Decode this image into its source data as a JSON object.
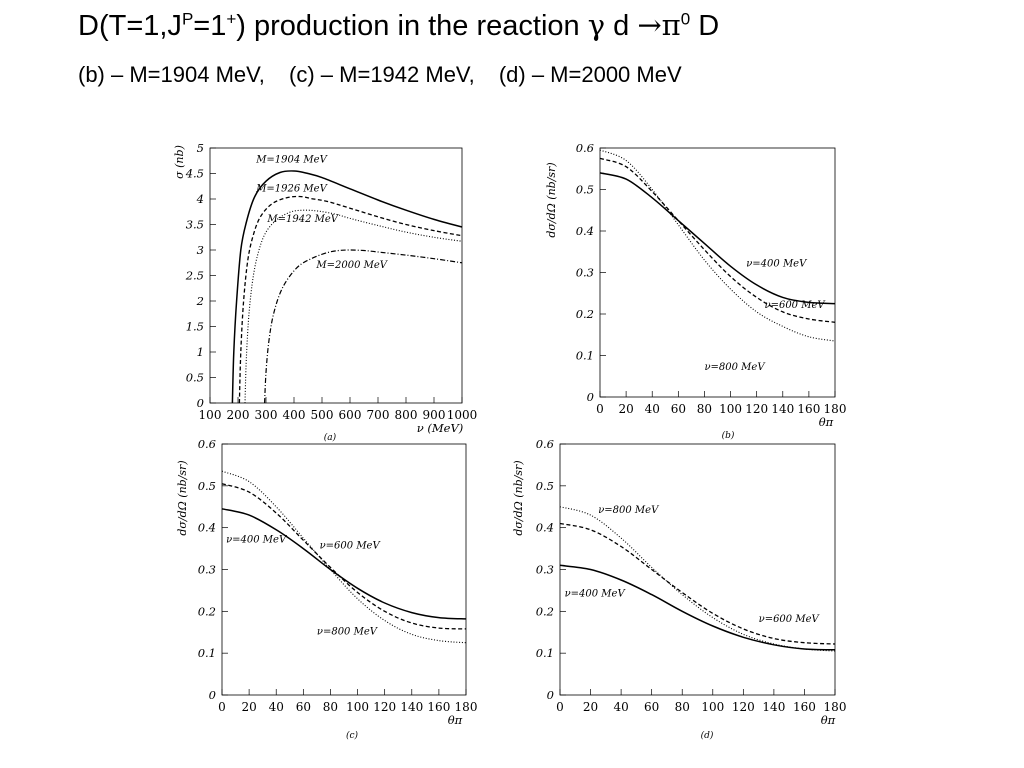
{
  "header": {
    "title_prefix": "D(T=1,J",
    "title_sup1": "P",
    "title_mid": "=1",
    "title_sup2": "+",
    "title_main": ") production in the reaction ",
    "title_gamma": "γ",
    "title_d": " d ",
    "title_arrow_pi": "→π",
    "title_sup3": "0",
    "title_D": " D",
    "subtitle_b": "(b) – M=1904 MeV,",
    "subtitle_c": "(c) – M=1942 MeV,",
    "subtitle_d": "(d) – M=2000 MeV"
  },
  "chart_data": [
    {
      "panel": "a",
      "type": "line",
      "caption": "(a)",
      "xlabel": "ν (MeV)",
      "ylabel": "σ (nb)",
      "xlim": [
        100,
        1000
      ],
      "ylim": [
        0,
        5
      ],
      "xticks": [
        100,
        200,
        300,
        400,
        500,
        600,
        700,
        800,
        900,
        1000
      ],
      "yticks": [
        0,
        0.5,
        1,
        1.5,
        2,
        2.5,
        3,
        3.5,
        4,
        4.5,
        5
      ],
      "ytick_labels": [
        "0",
        "0.5",
        "1",
        "1.5",
        "2",
        "2.5",
        "3",
        "3.5",
        "4",
        "4.5",
        "5"
      ],
      "series": [
        {
          "name": "M=1904 MeV",
          "style": "solid",
          "label_at": [
            265,
            4.72
          ],
          "x": [
            180,
            185,
            195,
            210,
            230,
            260,
            300,
            350,
            400,
            450,
            500,
            600,
            700,
            800,
            900,
            1000
          ],
          "y": [
            0,
            1.0,
            2.0,
            3.0,
            3.55,
            4.05,
            4.35,
            4.52,
            4.55,
            4.5,
            4.42,
            4.2,
            3.98,
            3.78,
            3.6,
            3.45
          ]
        },
        {
          "name": "M=1926 MeV",
          "style": "dash",
          "label_at": [
            265,
            4.15
          ],
          "x": [
            205,
            210,
            220,
            235,
            255,
            280,
            320,
            370,
            420,
            470,
            520,
            600,
            700,
            800,
            900,
            1000
          ],
          "y": [
            0,
            1.0,
            2.0,
            2.8,
            3.3,
            3.65,
            3.9,
            4.02,
            4.05,
            4.0,
            3.95,
            3.82,
            3.65,
            3.5,
            3.38,
            3.28
          ]
        },
        {
          "name": "M=1942 MeV",
          "style": "dot",
          "label_at": [
            305,
            3.55
          ],
          "x": [
            225,
            230,
            240,
            255,
            275,
            300,
            340,
            390,
            440,
            490,
            550,
            600,
            700,
            800,
            900,
            1000
          ],
          "y": [
            0,
            0.9,
            1.8,
            2.5,
            3.0,
            3.35,
            3.6,
            3.75,
            3.78,
            3.76,
            3.7,
            3.62,
            3.48,
            3.35,
            3.25,
            3.17
          ]
        },
        {
          "name": "M=2000 MeV",
          "style": "dashdot",
          "label_at": [
            480,
            2.65
          ],
          "x": [
            295,
            300,
            310,
            325,
            350,
            380,
            420,
            470,
            520,
            560,
            600,
            650,
            700,
            800,
            900,
            1000
          ],
          "y": [
            0,
            0.6,
            1.2,
            1.7,
            2.15,
            2.45,
            2.7,
            2.85,
            2.95,
            2.99,
            3.0,
            2.99,
            2.96,
            2.9,
            2.83,
            2.75
          ]
        }
      ]
    },
    {
      "panel": "b",
      "type": "line",
      "caption": "(b)",
      "xlabel": "θπ",
      "ylabel": "dσ/dΩ (nb/sr)",
      "xlim": [
        0,
        180
      ],
      "ylim": [
        0,
        0.6
      ],
      "xticks": [
        0,
        20,
        40,
        60,
        80,
        100,
        120,
        140,
        160,
        180
      ],
      "yticks": [
        0,
        0.1,
        0.2,
        0.3,
        0.4,
        0.5,
        0.6
      ],
      "ytick_labels": [
        "0",
        "0.1",
        "0.2",
        "0.3",
        "0.4",
        "0.5",
        "0.6"
      ],
      "series": [
        {
          "name": "ν=400 MeV",
          "style": "solid",
          "label_at": [
            112,
            0.315
          ],
          "x": [
            0,
            20,
            40,
            60,
            80,
            100,
            120,
            140,
            160,
            180
          ],
          "y": [
            0.54,
            0.525,
            0.48,
            0.425,
            0.37,
            0.315,
            0.27,
            0.24,
            0.228,
            0.225
          ]
        },
        {
          "name": "ν=600 MeV",
          "style": "dash",
          "label_at": [
            126,
            0.215
          ],
          "x": [
            0,
            20,
            40,
            60,
            80,
            100,
            120,
            140,
            160,
            180
          ],
          "y": [
            0.575,
            0.555,
            0.495,
            0.425,
            0.355,
            0.29,
            0.24,
            0.205,
            0.188,
            0.18
          ]
        },
        {
          "name": "ν=800 MeV",
          "style": "dot",
          "label_at": [
            80,
            0.065
          ],
          "x": [
            0,
            20,
            40,
            60,
            80,
            100,
            120,
            140,
            160,
            180
          ],
          "y": [
            0.595,
            0.57,
            0.5,
            0.415,
            0.33,
            0.26,
            0.205,
            0.17,
            0.145,
            0.135
          ]
        }
      ]
    },
    {
      "panel": "c",
      "type": "line",
      "caption": "(c)",
      "xlabel": "θπ",
      "ylabel": "dσ/dΩ (nb/sr)",
      "xlim": [
        0,
        180
      ],
      "ylim": [
        0,
        0.6
      ],
      "xticks": [
        0,
        20,
        40,
        60,
        80,
        100,
        120,
        140,
        160,
        180
      ],
      "yticks": [
        0,
        0.1,
        0.2,
        0.3,
        0.4,
        0.5,
        0.6
      ],
      "ytick_labels": [
        "0",
        "0.1",
        "0.2",
        "0.3",
        "0.4",
        "0.5",
        "0.6"
      ],
      "series": [
        {
          "name": "ν=400 MeV",
          "style": "solid",
          "label_at": [
            3,
            0.365
          ],
          "x": [
            0,
            20,
            40,
            60,
            80,
            100,
            120,
            140,
            160,
            180
          ],
          "y": [
            0.445,
            0.43,
            0.395,
            0.35,
            0.3,
            0.255,
            0.22,
            0.197,
            0.185,
            0.182
          ]
        },
        {
          "name": "ν=600 MeV",
          "style": "dash",
          "label_at": [
            72,
            0.35
          ],
          "x": [
            0,
            20,
            40,
            60,
            80,
            100,
            120,
            140,
            160,
            180
          ],
          "y": [
            0.505,
            0.485,
            0.435,
            0.37,
            0.305,
            0.245,
            0.2,
            0.172,
            0.16,
            0.158
          ]
        },
        {
          "name": "ν=800 MeV",
          "style": "dot",
          "label_at": [
            70,
            0.145
          ],
          "x": [
            0,
            20,
            40,
            60,
            80,
            100,
            120,
            140,
            160,
            180
          ],
          "y": [
            0.535,
            0.51,
            0.45,
            0.375,
            0.3,
            0.23,
            0.178,
            0.145,
            0.13,
            0.125
          ]
        }
      ]
    },
    {
      "panel": "d",
      "type": "line",
      "caption": "(d)",
      "xlabel": "θπ",
      "ylabel": "dσ/dΩ (nb/sr)",
      "xlim": [
        0,
        180
      ],
      "ylim": [
        0,
        0.6
      ],
      "xticks": [
        0,
        20,
        40,
        60,
        80,
        100,
        120,
        140,
        160,
        180
      ],
      "yticks": [
        0,
        0.1,
        0.2,
        0.3,
        0.4,
        0.5,
        0.6
      ],
      "ytick_labels": [
        "0",
        "0.1",
        "0.2",
        "0.3",
        "0.4",
        "0.5",
        "0.6"
      ],
      "series": [
        {
          "name": "ν=400 MeV",
          "style": "solid",
          "label_at": [
            3,
            0.235
          ],
          "x": [
            0,
            20,
            40,
            60,
            80,
            100,
            120,
            140,
            160,
            180
          ],
          "y": [
            0.31,
            0.3,
            0.275,
            0.24,
            0.2,
            0.165,
            0.138,
            0.12,
            0.11,
            0.108
          ]
        },
        {
          "name": "ν=600 MeV",
          "style": "dash",
          "label_at": [
            130,
            0.175
          ],
          "x": [
            0,
            20,
            40,
            60,
            80,
            100,
            120,
            140,
            160,
            180
          ],
          "y": [
            0.41,
            0.395,
            0.355,
            0.3,
            0.245,
            0.195,
            0.158,
            0.135,
            0.125,
            0.122
          ]
        },
        {
          "name": "ν=800 MeV",
          "style": "dot",
          "label_at": [
            25,
            0.435
          ],
          "x": [
            0,
            20,
            40,
            60,
            80,
            100,
            120,
            140,
            160,
            180
          ],
          "y": [
            0.45,
            0.43,
            0.375,
            0.305,
            0.24,
            0.185,
            0.145,
            0.122,
            0.11,
            0.105
          ]
        }
      ]
    }
  ]
}
